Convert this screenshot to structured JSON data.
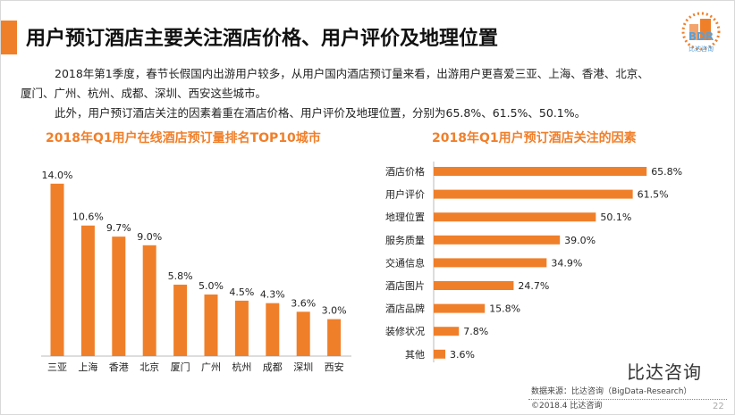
{
  "header": {
    "title": "用户预订酒店主要关注酒店价格、用户评价及地理位置",
    "logo_text": "BDR",
    "logo_sub": "比达咨询"
  },
  "body": {
    "p1a": "2018年第1季度，春节长假国内出游用户较多，从用户国内酒店预订量来看，出游用户更喜爱三亚、上海、香港、北京、",
    "p1b": "厦门、广州、杭州、成都、深圳、西安这些城市。",
    "p2": "此外，用户预订酒店关注的因素着重在酒店价格、用户评价及地理位置，分别为65.8%、61.5%、50.1%。"
  },
  "chart_data": [
    {
      "type": "bar",
      "title": "2018年Q1用户在线酒店预订量排名TOP10城市",
      "categories": [
        "三亚",
        "上海",
        "香港",
        "北京",
        "厦门",
        "广州",
        "杭州",
        "成都",
        "深圳",
        "西安"
      ],
      "values": [
        14.0,
        10.6,
        9.7,
        9.0,
        5.8,
        5.0,
        4.5,
        4.3,
        3.6,
        3.0
      ],
      "labels": [
        "14.0%",
        "10.6%",
        "9.7%",
        "9.0%",
        "5.8%",
        "5.0%",
        "4.5%",
        "4.3%",
        "3.6%",
        "3.0%"
      ],
      "color": "#f07f2a",
      "grid": false
    },
    {
      "type": "bar",
      "orientation": "horizontal",
      "title": "2018年Q1用户预订酒店关注的因素",
      "categories": [
        "酒店价格",
        "用户评价",
        "地理位置",
        "服务质量",
        "交通信息",
        "酒店图片",
        "酒店品牌",
        "装修状况",
        "其他"
      ],
      "values": [
        65.8,
        61.5,
        50.1,
        39.0,
        34.9,
        24.7,
        15.8,
        7.8,
        3.6
      ],
      "labels": [
        "65.8%",
        "61.5%",
        "50.1%",
        "39.0%",
        "34.9%",
        "24.7%",
        "15.8%",
        "7.8%",
        "3.6%"
      ],
      "color": "#f07f2a",
      "grid": false
    }
  ],
  "footer": {
    "source": "数据来源：比达咨询（BigData-Research）",
    "copyright": "©2018.4 比达咨询",
    "page": "22",
    "watermark": "比达咨询"
  }
}
